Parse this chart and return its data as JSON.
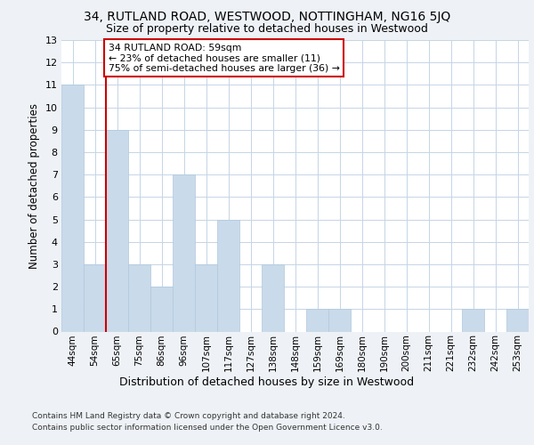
{
  "title1": "34, RUTLAND ROAD, WESTWOOD, NOTTINGHAM, NG16 5JQ",
  "title2": "Size of property relative to detached houses in Westwood",
  "xlabel": "Distribution of detached houses by size in Westwood",
  "ylabel": "Number of detached properties",
  "categories": [
    "44sqm",
    "54sqm",
    "65sqm",
    "75sqm",
    "86sqm",
    "96sqm",
    "107sqm",
    "117sqm",
    "127sqm",
    "138sqm",
    "148sqm",
    "159sqm",
    "169sqm",
    "180sqm",
    "190sqm",
    "200sqm",
    "211sqm",
    "221sqm",
    "232sqm",
    "242sqm",
    "253sqm"
  ],
  "values": [
    11,
    3,
    9,
    3,
    2,
    7,
    3,
    5,
    0,
    3,
    0,
    1,
    1,
    0,
    0,
    0,
    0,
    0,
    1,
    0,
    1
  ],
  "bar_color": "#c9daea",
  "bar_edge_color": "#b0c8dc",
  "vline_x": 1.5,
  "vline_color": "#cc0000",
  "annotation_text": "34 RUTLAND ROAD: 59sqm\n← 23% of detached houses are smaller (11)\n75% of semi-detached houses are larger (36) →",
  "annotation_box_color": "#ffffff",
  "annotation_box_edge": "#cc0000",
  "ylim": [
    0,
    13
  ],
  "yticks": [
    0,
    1,
    2,
    3,
    4,
    5,
    6,
    7,
    8,
    9,
    10,
    11,
    12,
    13
  ],
  "footer_line1": "Contains HM Land Registry data © Crown copyright and database right 2024.",
  "footer_line2": "Contains public sector information licensed under the Open Government Licence v3.0.",
  "bg_color": "#eef2f7",
  "plot_bg_color": "#ffffff",
  "grid_color": "#c5d5e5"
}
